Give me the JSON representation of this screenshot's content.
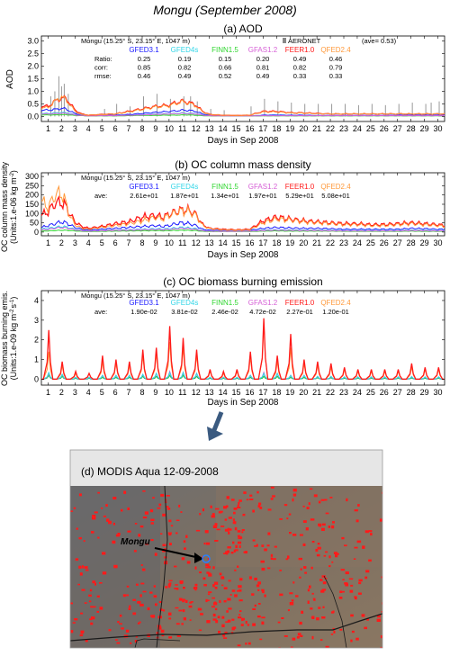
{
  "figure_title": "Mongu (September 2008)",
  "xlabel": "Days in Sep 2008",
  "site_label": "Mongu (15.25° S, 23.15° E, 1047 m)",
  "inventories": [
    {
      "name": "GFED3.1",
      "color": "#1a1aff"
    },
    {
      "name": "GFED4s",
      "color": "#33d6e8"
    },
    {
      "name": "FINN1.5",
      "color": "#2fd62f"
    },
    {
      "name": "GFAS1.2",
      "color": "#d65fd6"
    },
    {
      "name": "FEER1.0",
      "color": "#ff1a1a"
    },
    {
      "name": "QFED2.4",
      "color": "#ff9a3c"
    }
  ],
  "aod_panel": {
    "title": "(a) AOD",
    "ylabel": "AOD",
    "yticks": [
      "0.0",
      "0.5",
      "1.0",
      "1.5",
      "2.0",
      "2.5",
      "3.0"
    ],
    "aeronet_label": "AERONET",
    "aeronet_ave": "(ave= 0.53)",
    "stats": [
      {
        "label": "Ratio:",
        "values": [
          "0.25",
          "0.19",
          "0.15",
          "0.20",
          "0.49",
          "0.46"
        ]
      },
      {
        "label": "corr:",
        "values": [
          "0.85",
          "0.82",
          "0.66",
          "0.81",
          "0.82",
          "0.79"
        ]
      },
      {
        "label": "rmse:",
        "values": [
          "0.46",
          "0.49",
          "0.52",
          "0.49",
          "0.33",
          "0.33"
        ]
      }
    ]
  },
  "oc_panel": {
    "title": "(b) OC column mass density",
    "ylabel1": "OC column mass density",
    "ylabel2": "(Units:1.e-06 kg m",
    "ylabel2_sup": "-2",
    "yticks": [
      "0",
      "50",
      "100",
      "150",
      "200",
      "250",
      "300"
    ],
    "ave_label": "ave:",
    "ave_values": [
      "2.61e+01",
      "1.87e+01",
      "1.34e+01",
      "1.97e+01",
      "5.29e+01",
      "5.08e+01"
    ]
  },
  "emis_panel": {
    "title": "(c) OC biomass burning emission",
    "ylabel1": "OC biomass burning emis.",
    "ylabel2": "(Units:1.e-09 kg m",
    "ylabel2_sup": "-2",
    "ylabel2_tail": "s",
    "ylabel2_sup2": "-1",
    "yticks": [
      "0",
      "1",
      "2",
      "3",
      "4"
    ],
    "ave_label": "ave:",
    "ave_values": [
      "1.90e-02",
      "3.81e-02",
      "2.46e-02",
      "4.72e-02",
      "2.27e-01",
      "1.20e-01"
    ]
  },
  "modis_panel": {
    "title": "(d) MODIS Aqua 12-09-2008",
    "marker_label": "Mongu"
  },
  "chart_data": [
    {
      "type": "line",
      "title": "(a) AOD",
      "ylabel": "AOD",
      "xlabel": "Days in Sep 2008",
      "xlim": [
        0.5,
        30.5
      ],
      "ylim": [
        -0.2,
        3.2
      ],
      "x_knots": [
        1,
        1.5,
        2,
        2.3,
        2.6,
        3,
        3.5,
        4,
        5,
        6,
        7,
        8,
        8.5,
        9,
        9.5,
        10,
        10.5,
        11,
        11.5,
        12,
        12.5,
        13,
        14,
        15,
        16,
        17,
        18,
        19,
        20,
        21,
        22,
        23,
        24,
        25,
        26,
        27,
        28,
        29,
        30
      ],
      "series": [
        {
          "name": "GFED3.1",
          "values": [
            0.25,
            0.28,
            0.32,
            0.3,
            0.22,
            0.12,
            0.05,
            0.03,
            0.04,
            0.05,
            0.08,
            0.12,
            0.14,
            0.16,
            0.18,
            0.2,
            0.22,
            0.25,
            0.24,
            0.2,
            0.1,
            0.05,
            0.03,
            0.02,
            0.02,
            0.05,
            0.06,
            0.05,
            0.05,
            0.04,
            0.04,
            0.04,
            0.04,
            0.04,
            0.04,
            0.05,
            0.05,
            0.05,
            0.05
          ]
        },
        {
          "name": "GFED4s",
          "values": [
            0.12,
            0.14,
            0.16,
            0.15,
            0.12,
            0.07,
            0.04,
            0.02,
            0.03,
            0.03,
            0.05,
            0.07,
            0.08,
            0.09,
            0.1,
            0.11,
            0.12,
            0.14,
            0.13,
            0.11,
            0.06,
            0.03,
            0.02,
            0.02,
            0.02,
            0.03,
            0.04,
            0.03,
            0.03,
            0.03,
            0.03,
            0.03,
            0.03,
            0.03,
            0.03,
            0.03,
            0.03,
            0.03,
            0.03
          ]
        },
        {
          "name": "FINN1.5",
          "values": [
            0.06,
            0.06,
            0.07,
            0.07,
            0.06,
            0.04,
            0.03,
            0.02,
            0.02,
            0.02,
            0.03,
            0.04,
            0.04,
            0.04,
            0.05,
            0.05,
            0.05,
            0.06,
            0.06,
            0.05,
            0.03,
            0.02,
            0.02,
            0.02,
            0.02,
            0.02,
            0.02,
            0.02,
            0.02,
            0.02,
            0.02,
            0.02,
            0.02,
            0.02,
            0.02,
            0.02,
            0.02,
            0.02,
            0.02
          ]
        },
        {
          "name": "GFAS1.2",
          "values": [
            0.1,
            0.11,
            0.13,
            0.12,
            0.1,
            0.06,
            0.04,
            0.02,
            0.03,
            0.03,
            0.05,
            0.06,
            0.07,
            0.08,
            0.09,
            0.1,
            0.11,
            0.12,
            0.11,
            0.1,
            0.05,
            0.03,
            0.02,
            0.02,
            0.02,
            0.03,
            0.03,
            0.03,
            0.03,
            0.03,
            0.03,
            0.03,
            0.03,
            0.03,
            0.03,
            0.03,
            0.03,
            0.03,
            0.03
          ]
        },
        {
          "name": "FEER1.0",
          "values": [
            0.4,
            0.6,
            0.75,
            0.7,
            0.55,
            0.25,
            0.1,
            0.05,
            0.08,
            0.1,
            0.2,
            0.3,
            0.35,
            0.4,
            0.42,
            0.45,
            0.55,
            0.6,
            0.55,
            0.45,
            0.2,
            0.08,
            0.05,
            0.04,
            0.05,
            0.2,
            0.2,
            0.15,
            0.14,
            0.12,
            0.1,
            0.1,
            0.1,
            0.1,
            0.1,
            0.1,
            0.1,
            0.1,
            0.1
          ]
        },
        {
          "name": "QFED2.4",
          "values": [
            0.35,
            0.6,
            0.8,
            0.65,
            0.5,
            0.2,
            0.08,
            0.05,
            0.07,
            0.1,
            0.18,
            0.28,
            0.33,
            0.38,
            0.4,
            0.42,
            0.52,
            0.58,
            0.52,
            0.42,
            0.18,
            0.07,
            0.05,
            0.04,
            0.05,
            0.18,
            0.18,
            0.14,
            0.13,
            0.11,
            0.1,
            0.1,
            0.1,
            0.1,
            0.1,
            0.1,
            0.1,
            0.1,
            0.1
          ]
        }
      ],
      "aeronet_bars": {
        "name": "AERONET",
        "x": [
          1.2,
          1.5,
          1.8,
          2.0,
          2.2,
          2.5,
          3.1,
          5.2,
          6.1,
          7.1,
          8.1,
          9.1,
          10.1,
          11.1,
          11.6,
          12.1,
          13.1,
          14.1,
          16.1,
          17.1,
          18.1,
          19.1,
          20.1,
          21.1,
          22.1,
          23.1,
          24.1,
          25.1,
          26.1,
          27.1,
          28.1,
          29.1,
          29.5,
          30.1
        ],
        "values": [
          0.8,
          1.0,
          1.6,
          1.2,
          1.3,
          0.9,
          0.2,
          0.3,
          0.5,
          0.4,
          0.8,
          0.9,
          0.7,
          0.8,
          0.8,
          0.6,
          0.3,
          0.25,
          0.4,
          0.7,
          0.6,
          0.55,
          0.5,
          0.5,
          0.5,
          0.5,
          0.45,
          0.5,
          0.45,
          0.5,
          0.55,
          0.5,
          0.55,
          0.6
        ]
      }
    },
    {
      "type": "line",
      "title": "(b) OC column mass density",
      "ylabel": "OC column mass density (Units:1.e-06 kg m-2)",
      "xlabel": "Days in Sep 2008",
      "xlim": [
        0.5,
        30.5
      ],
      "ylim": [
        -20,
        320
      ],
      "x_knots": [
        0.5,
        1,
        1.5,
        2,
        2.3,
        2.6,
        3,
        3.5,
        4,
        5,
        6,
        7,
        8,
        8.5,
        9,
        9.5,
        10,
        10.5,
        11,
        11.5,
        12,
        12.5,
        13,
        14,
        15,
        16,
        17,
        18,
        19,
        20,
        21,
        22,
        23,
        24,
        25,
        26,
        27,
        28,
        29,
        30,
        30.5
      ],
      "series": [
        {
          "name": "GFED3.1",
          "values": [
            25,
            35,
            45,
            55,
            50,
            40,
            25,
            15,
            10,
            15,
            20,
            25,
            30,
            32,
            35,
            30,
            35,
            45,
            50,
            45,
            35,
            15,
            10,
            8,
            8,
            10,
            20,
            25,
            22,
            20,
            20,
            18,
            15,
            15,
            15,
            15,
            15,
            20,
            18,
            15,
            15
          ]
        },
        {
          "name": "GFED4s",
          "values": [
            15,
            20,
            25,
            30,
            28,
            22,
            15,
            8,
            6,
            8,
            10,
            12,
            15,
            16,
            18,
            16,
            18,
            22,
            25,
            22,
            18,
            8,
            6,
            5,
            5,
            6,
            10,
            12,
            11,
            10,
            10,
            9,
            8,
            8,
            8,
            8,
            8,
            10,
            9,
            8,
            8
          ]
        },
        {
          "name": "FINN1.5",
          "values": [
            5,
            6,
            8,
            10,
            9,
            8,
            6,
            4,
            3,
            4,
            5,
            6,
            7,
            7,
            8,
            7,
            8,
            9,
            10,
            9,
            8,
            4,
            3,
            3,
            3,
            3,
            5,
            6,
            5,
            5,
            5,
            5,
            4,
            4,
            4,
            4,
            4,
            5,
            4,
            4,
            4
          ]
        },
        {
          "name": "GFAS1.2",
          "values": [
            12,
            15,
            20,
            25,
            22,
            18,
            12,
            7,
            5,
            7,
            9,
            10,
            12,
            13,
            14,
            13,
            14,
            18,
            20,
            18,
            14,
            7,
            5,
            4,
            4,
            5,
            8,
            10,
            9,
            8,
            8,
            7,
            6,
            6,
            6,
            6,
            6,
            8,
            7,
            6,
            6
          ]
        },
        {
          "name": "FEER1.0",
          "values": [
            90,
            110,
            155,
            160,
            140,
            100,
            55,
            30,
            20,
            30,
            45,
            55,
            80,
            85,
            90,
            80,
            95,
            110,
            120,
            115,
            95,
            40,
            20,
            15,
            12,
            15,
            60,
            80,
            70,
            60,
            55,
            50,
            45,
            45,
            40,
            40,
            45,
            50,
            45,
            40,
            35
          ]
        },
        {
          "name": "QFED2.4",
          "values": [
            170,
            130,
            200,
            210,
            160,
            90,
            40,
            20,
            15,
            25,
            35,
            45,
            60,
            70,
            80,
            70,
            90,
            105,
            115,
            110,
            90,
            35,
            18,
            12,
            10,
            12,
            50,
            70,
            65,
            55,
            50,
            45,
            40,
            40,
            35,
            35,
            40,
            45,
            40,
            35,
            30
          ]
        }
      ]
    },
    {
      "type": "line",
      "title": "(c) OC biomass burning emission",
      "ylabel": "OC biomass burning emis. (Units:1.e-09 kg m-2 s-1)",
      "xlabel": "Days in Sep 2008",
      "xlim": [
        0.5,
        30.5
      ],
      "ylim": [
        -0.3,
        4.5
      ],
      "daily_peak_hour_fraction": 0.55,
      "days": [
        1,
        2,
        3,
        4,
        5,
        6,
        7,
        8,
        9,
        10,
        11,
        12,
        13,
        14,
        15,
        16,
        17,
        18,
        19,
        20,
        21,
        22,
        23,
        24,
        25,
        26,
        27,
        28,
        29,
        30
      ],
      "series": [
        {
          "name": "GFED3.1",
          "peaks": [
            0.2,
            0.15,
            0.05,
            0.05,
            0.1,
            0.1,
            0.1,
            0.15,
            0.15,
            0.2,
            0.2,
            0.15,
            0.05,
            0.05,
            0.05,
            0.1,
            0.15,
            0.15,
            0.1,
            0.1,
            0.08,
            0.08,
            0.06,
            0.06,
            0.06,
            0.06,
            0.06,
            0.07,
            0.06,
            0.06
          ]
        },
        {
          "name": "GFED4s",
          "peaks": [
            0.35,
            0.25,
            0.1,
            0.1,
            0.2,
            0.2,
            0.2,
            0.25,
            0.3,
            0.35,
            0.35,
            0.3,
            0.1,
            0.1,
            0.1,
            0.2,
            0.3,
            0.3,
            0.2,
            0.2,
            0.15,
            0.15,
            0.12,
            0.12,
            0.12,
            0.12,
            0.12,
            0.14,
            0.12,
            0.12
          ]
        },
        {
          "name": "FINN1.5",
          "peaks": [
            0.2,
            0.15,
            0.05,
            0.05,
            0.1,
            0.1,
            0.1,
            0.15,
            0.15,
            0.2,
            0.2,
            0.15,
            0.05,
            0.05,
            0.05,
            0.1,
            0.15,
            0.15,
            0.1,
            0.1,
            0.08,
            0.08,
            0.06,
            0.06,
            0.06,
            0.06,
            0.06,
            0.07,
            0.06,
            0.06
          ]
        },
        {
          "name": "GFAS1.2",
          "peaks": [
            0.3,
            0.25,
            0.1,
            0.1,
            0.2,
            0.2,
            0.2,
            0.25,
            0.3,
            0.4,
            0.35,
            0.3,
            0.1,
            0.1,
            0.1,
            0.2,
            0.35,
            0.3,
            0.2,
            0.2,
            0.15,
            0.15,
            0.12,
            0.12,
            0.12,
            0.12,
            0.12,
            0.14,
            0.12,
            0.12
          ]
        },
        {
          "name": "FEER1.0",
          "peaks": [
            2.5,
            0.9,
            0.4,
            0.3,
            1.2,
            1.0,
            0.9,
            1.5,
            1.6,
            2.7,
            2.1,
            1.5,
            0.5,
            0.4,
            0.5,
            1.4,
            3.1,
            1.2,
            2.3,
            1.0,
            0.9,
            0.8,
            0.6,
            0.5,
            0.5,
            0.5,
            0.5,
            0.8,
            0.6,
            0.6
          ]
        },
        {
          "name": "QFED2.4",
          "peaks": [
            1.4,
            0.7,
            0.3,
            0.3,
            0.9,
            0.8,
            0.7,
            1.2,
            1.3,
            1.9,
            1.6,
            1.2,
            0.4,
            0.3,
            0.4,
            1.1,
            2.9,
            0.9,
            1.6,
            0.8,
            0.7,
            0.6,
            0.5,
            0.4,
            0.4,
            0.4,
            0.4,
            0.6,
            0.5,
            0.5
          ]
        }
      ]
    }
  ]
}
